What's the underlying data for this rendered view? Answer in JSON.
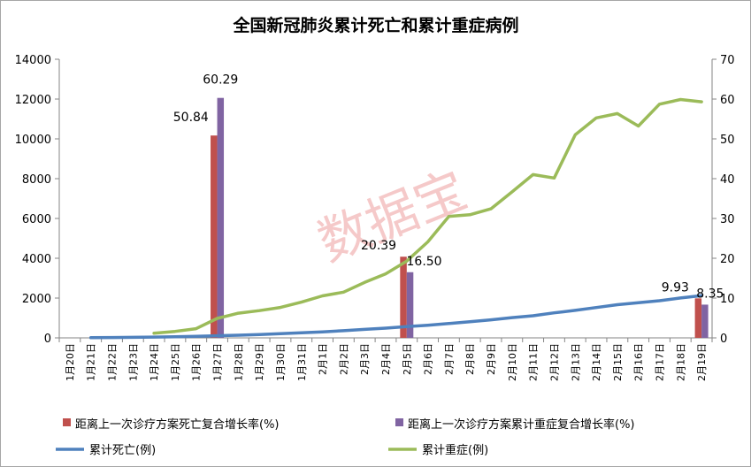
{
  "chart_data": {
    "type": "bar",
    "title": "全国新冠肺炎累计死亡和累计重症病例",
    "watermark": "数据宝",
    "categories": [
      "1月20日",
      "1月21日",
      "1月22日",
      "1月23日",
      "1月24日",
      "1月25日",
      "1月26日",
      "1月27日",
      "1月28日",
      "1月29日",
      "1月30日",
      "1月31日",
      "2月1日",
      "2月2日",
      "2月3日",
      "2月4日",
      "2月5日",
      "2月6日",
      "2月7日",
      "2月8日",
      "2月9日",
      "2月10日",
      "2月11日",
      "2月12日",
      "2月13日",
      "2月14日",
      "2月15日",
      "2月16日",
      "2月17日",
      "2月18日",
      "2月19日"
    ],
    "y_left": {
      "min": 0,
      "max": 14000,
      "ticks": [
        0,
        2000,
        4000,
        6000,
        8000,
        10000,
        12000,
        14000
      ]
    },
    "y_right": {
      "min": 0,
      "max": 70,
      "ticks": [
        0,
        10,
        20,
        30,
        40,
        50,
        60,
        70
      ]
    },
    "grid": false,
    "legend_position": "bottom",
    "series": [
      {
        "name": "距离上一次诊疗方案死亡复合增长率(%)",
        "type": "bar",
        "axis": "right",
        "color": "#c0504d",
        "values": [
          null,
          null,
          null,
          null,
          null,
          null,
          null,
          50.84,
          null,
          null,
          null,
          null,
          null,
          null,
          null,
          null,
          20.39,
          null,
          null,
          null,
          null,
          null,
          null,
          null,
          null,
          null,
          null,
          null,
          null,
          null,
          9.93
        ],
        "labels": [
          "50.84",
          "20.39",
          "9.93"
        ]
      },
      {
        "name": "距离上一次诊疗方案累计重症复合增长率(%)",
        "type": "bar",
        "axis": "right",
        "color": "#8064a2",
        "values": [
          null,
          null,
          null,
          null,
          null,
          null,
          null,
          60.29,
          null,
          null,
          null,
          null,
          null,
          null,
          null,
          null,
          16.5,
          null,
          null,
          null,
          null,
          null,
          null,
          null,
          null,
          null,
          null,
          null,
          null,
          null,
          8.35
        ],
        "labels": [
          "60.29",
          "16.50",
          "8.35"
        ]
      },
      {
        "name": "累计死亡(例)",
        "type": "line",
        "axis": "left",
        "color": "#4f81bd",
        "values": [
          null,
          9,
          17,
          25,
          41,
          56,
          80,
          106,
          132,
          170,
          213,
          259,
          304,
          361,
          425,
          490,
          563,
          636,
          722,
          811,
          908,
          1016,
          1113,
          1259,
          1380,
          1523,
          1665,
          1770,
          1868,
          2004,
          2118
        ]
      },
      {
        "name": "累计重症(例)",
        "type": "line",
        "axis": "left",
        "color": "#9bbb59",
        "values": [
          null,
          null,
          null,
          null,
          237,
          324,
          461,
          976,
          1239,
          1370,
          1527,
          1795,
          2110,
          2296,
          2788,
          3219,
          3859,
          4821,
          6101,
          6188,
          6484,
          7333,
          8204,
          8030,
          10204,
          11053,
          11272,
          10644,
          11741,
          11977,
          11864
        ]
      }
    ]
  }
}
